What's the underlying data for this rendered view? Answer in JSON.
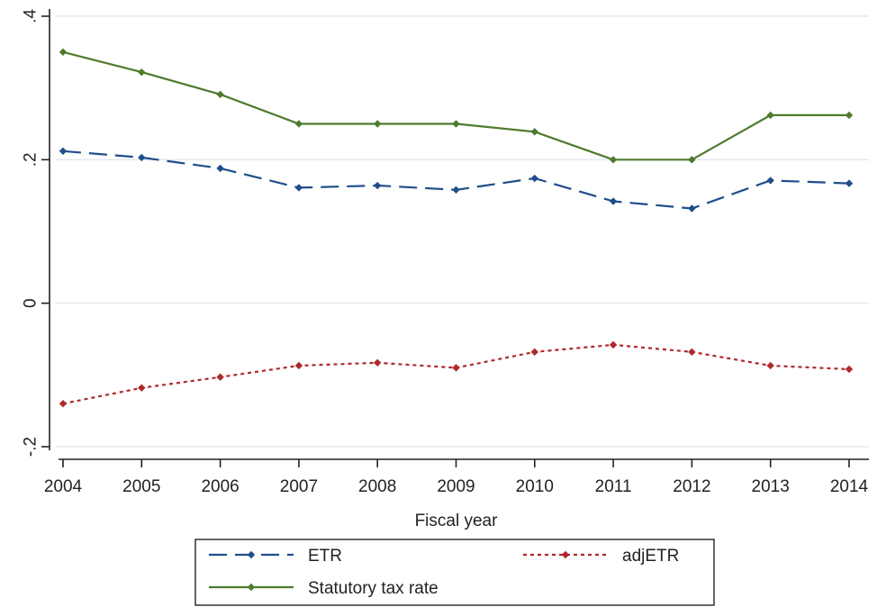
{
  "chart_data": {
    "type": "line",
    "title": "",
    "xlabel": "Fiscal year",
    "ylabel": "",
    "x": [
      2004,
      2005,
      2006,
      2007,
      2008,
      2009,
      2010,
      2011,
      2012,
      2013,
      2014
    ],
    "x_tick_labels": [
      "2004",
      "2005",
      "2006",
      "2007",
      "2008",
      "2009",
      "2010",
      "2011",
      "2012",
      "2013",
      "2014"
    ],
    "ylim": [
      -0.2,
      0.4
    ],
    "y_ticks": [
      -0.2,
      0,
      0.2,
      0.4
    ],
    "y_tick_labels": [
      "-.2",
      "0",
      ".2",
      ".4"
    ],
    "grid": "horizontal",
    "legend_position": "bottom",
    "series": [
      {
        "name": "ETR",
        "style": "dashed",
        "color": "#1f4e8c",
        "values": [
          0.212,
          0.203,
          0.188,
          0.161,
          0.164,
          0.158,
          0.174,
          0.142,
          0.132,
          0.171,
          0.167
        ]
      },
      {
        "name": "adjETR",
        "style": "dotted",
        "color": "#b0282c",
        "values": [
          -0.14,
          -0.118,
          -0.103,
          -0.087,
          -0.083,
          -0.09,
          -0.068,
          -0.058,
          -0.068,
          -0.087,
          -0.092
        ]
      },
      {
        "name": "Statutory tax rate",
        "style": "solid",
        "color": "#4f7a2c",
        "values": [
          0.35,
          0.322,
          0.291,
          0.25,
          0.25,
          0.25,
          0.239,
          0.2,
          0.2,
          0.262,
          0.262
        ]
      }
    ]
  }
}
